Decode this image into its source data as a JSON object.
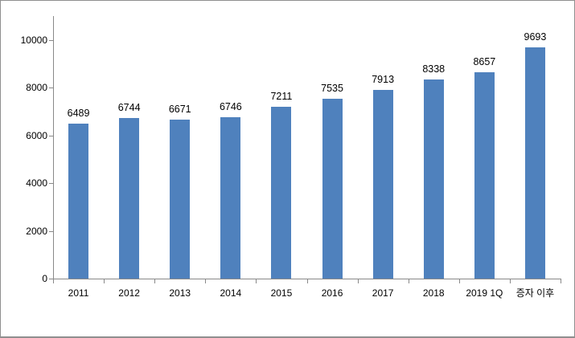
{
  "chart_data": {
    "type": "bar",
    "title": "",
    "xlabel": "",
    "ylabel": "",
    "categories": [
      "2011",
      "2012",
      "2013",
      "2014",
      "2015",
      "2016",
      "2017",
      "2018",
      "2019 1Q",
      "증자 이후"
    ],
    "values": [
      6489,
      6744,
      6671,
      6746,
      7211,
      7535,
      7913,
      8338,
      8657,
      9693
    ],
    "data_labels": [
      "6489",
      "6744",
      "6671",
      "6746",
      "7211",
      "7535",
      "7913",
      "8338",
      "8657",
      "9693"
    ],
    "ylim": [
      0,
      11000
    ],
    "yticks": [
      0,
      2000,
      4000,
      6000,
      8000,
      10000
    ],
    "ytick_labels": [
      "0",
      "2000",
      "4000",
      "6000",
      "8000",
      "10000"
    ],
    "grid": false,
    "legend": "none",
    "colors": {
      "bar": "#4f81bd",
      "axis": "#898989",
      "text": "#000000",
      "frame_border": "#8f8f8f",
      "background": "#ffffff"
    }
  }
}
